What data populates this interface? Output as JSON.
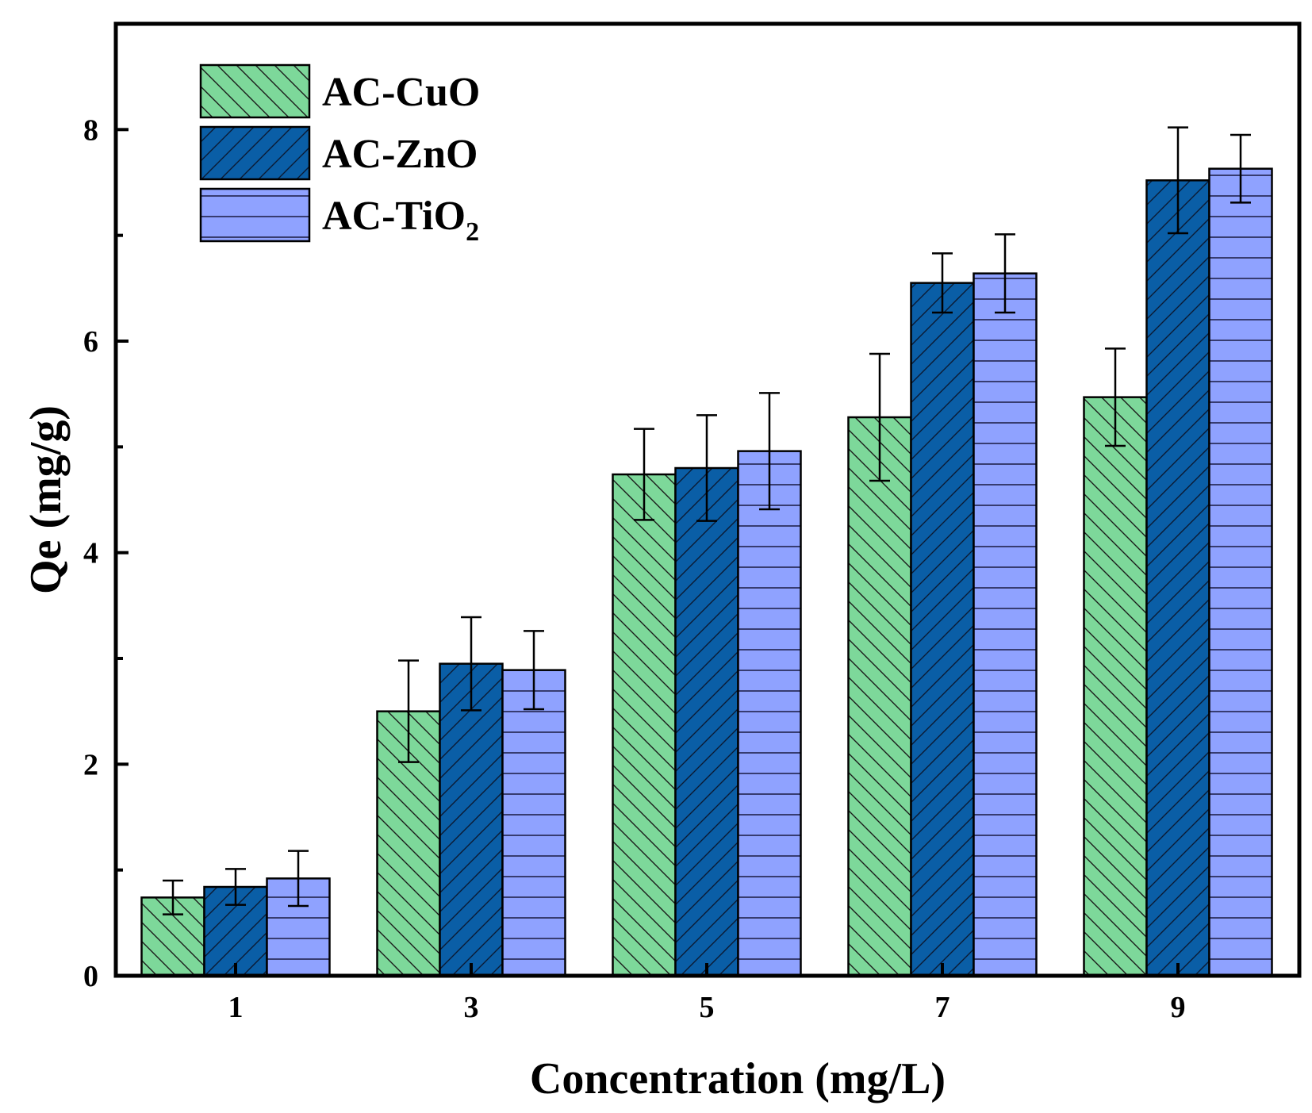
{
  "chart_data": {
    "type": "bar",
    "title": "",
    "xlabel": "Concentration (mg/L)",
    "ylabel": "Qe (mg/g)",
    "categories": [
      "1",
      "3",
      "5",
      "7",
      "9"
    ],
    "ylim": [
      0,
      9
    ],
    "yticks": [
      0,
      2,
      4,
      6,
      8
    ],
    "yticks_minor": [
      1,
      3,
      5,
      7
    ],
    "grid": false,
    "legend_position": "top-left",
    "series": [
      {
        "name": "AC-CuO",
        "legend_main": "AC-CuO",
        "legend_sub": "",
        "color": "#7dd89a",
        "pattern": "backslash",
        "values": [
          0.74,
          2.5,
          4.74,
          5.28,
          5.47
        ],
        "errors": [
          0.16,
          0.48,
          0.43,
          0.6,
          0.46
        ]
      },
      {
        "name": "AC-ZnO",
        "legend_main": "AC-ZnO",
        "legend_sub": "",
        "color": "#0a5ea6",
        "pattern": "slash",
        "values": [
          0.84,
          2.95,
          4.8,
          6.55,
          7.52
        ],
        "errors": [
          0.17,
          0.44,
          0.5,
          0.28,
          0.5
        ]
      },
      {
        "name": "AC-TiO2",
        "legend_main": "AC-TiO",
        "legend_sub": "2",
        "color": "#8fa2ff",
        "pattern": "horizontal",
        "values": [
          0.92,
          2.89,
          4.96,
          6.64,
          7.63
        ],
        "errors": [
          0.26,
          0.37,
          0.55,
          0.37,
          0.32
        ]
      }
    ]
  }
}
